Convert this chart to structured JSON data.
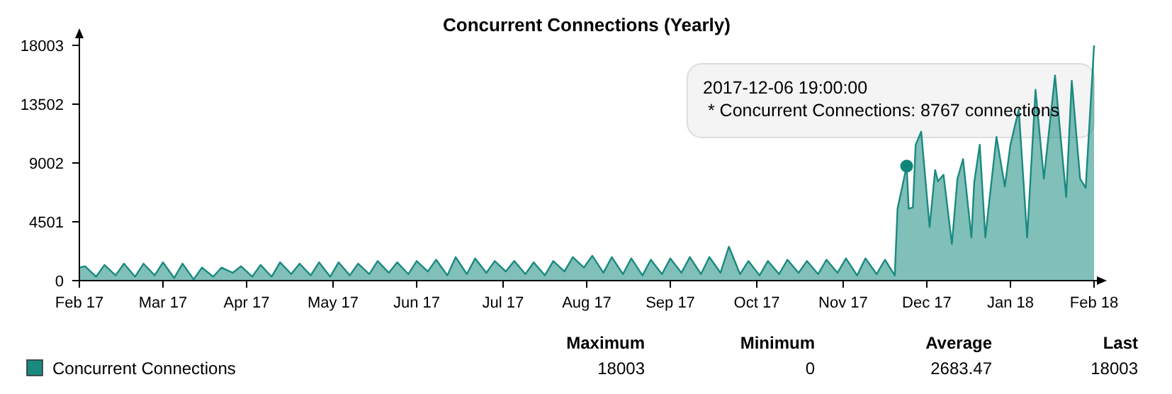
{
  "chart_data": {
    "type": "area",
    "title": "Concurrent Connections (Yearly)",
    "xlim": [
      "2017-02-13",
      "2018-02-12"
    ],
    "xticks": [
      {
        "value": "2017-02-13",
        "label": "Feb 17"
      },
      {
        "value": "2017-03-15",
        "label": "Mar 17"
      },
      {
        "value": "2017-04-14",
        "label": "Apr 17"
      },
      {
        "value": "2017-05-15",
        "label": "May 17"
      },
      {
        "value": "2017-06-14",
        "label": "Jun 17"
      },
      {
        "value": "2017-07-15",
        "label": "Jul 17"
      },
      {
        "value": "2017-08-14",
        "label": "Aug 17"
      },
      {
        "value": "2017-09-13",
        "label": "Sep 17"
      },
      {
        "value": "2017-10-14",
        "label": "Oct 17"
      },
      {
        "value": "2017-11-14",
        "label": "Nov 17"
      },
      {
        "value": "2017-12-14",
        "label": "Dec 17"
      },
      {
        "value": "2018-01-13",
        "label": "Jan 18"
      },
      {
        "value": "2018-02-12",
        "label": "Feb 18"
      }
    ],
    "ylim": [
      0,
      18003
    ],
    "yticks": [
      0,
      4501,
      9002,
      13502,
      18003
    ],
    "legend": "bottom left",
    "x": [
      "2017-02-13",
      "2017-02-15",
      "2017-02-19",
      "2017-02-22",
      "2017-02-26",
      "2017-03-01",
      "2017-03-05",
      "2017-03-08",
      "2017-03-12",
      "2017-03-15",
      "2017-03-19",
      "2017-03-22",
      "2017-03-26",
      "2017-03-29",
      "2017-04-02",
      "2017-04-05",
      "2017-04-09",
      "2017-04-12",
      "2017-04-16",
      "2017-04-19",
      "2017-04-23",
      "2017-04-26",
      "2017-04-30",
      "2017-05-03",
      "2017-05-07",
      "2017-05-10",
      "2017-05-14",
      "2017-05-17",
      "2017-05-21",
      "2017-05-24",
      "2017-05-28",
      "2017-05-31",
      "2017-06-04",
      "2017-06-07",
      "2017-06-11",
      "2017-06-14",
      "2017-06-18",
      "2017-06-21",
      "2017-06-25",
      "2017-06-28",
      "2017-07-02",
      "2017-07-05",
      "2017-07-09",
      "2017-07-12",
      "2017-07-16",
      "2017-07-19",
      "2017-07-23",
      "2017-07-26",
      "2017-07-30",
      "2017-08-02",
      "2017-08-06",
      "2017-08-09",
      "2017-08-13",
      "2017-08-16",
      "2017-08-20",
      "2017-08-23",
      "2017-08-27",
      "2017-08-30",
      "2017-09-03",
      "2017-09-06",
      "2017-09-10",
      "2017-09-13",
      "2017-09-17",
      "2017-09-20",
      "2017-09-24",
      "2017-09-27",
      "2017-10-01",
      "2017-10-04",
      "2017-10-08",
      "2017-10-11",
      "2017-10-15",
      "2017-10-18",
      "2017-10-22",
      "2017-10-25",
      "2017-10-29",
      "2017-11-01",
      "2017-11-05",
      "2017-11-08",
      "2017-11-12",
      "2017-11-15",
      "2017-11-19",
      "2017-11-22",
      "2017-11-26",
      "2017-11-29",
      "2017-12-02T12:00",
      "2017-12-03T12:00",
      "2017-12-06T19:00",
      "2017-12-07T12:00",
      "2017-12-09",
      "2017-12-10",
      "2017-12-12",
      "2017-12-15",
      "2017-12-17",
      "2017-12-18",
      "2017-12-20",
      "2017-12-23",
      "2017-12-25",
      "2017-12-27",
      "2017-12-30",
      "2017-12-31",
      "2018-01-02",
      "2018-01-04",
      "2018-01-06",
      "2018-01-08",
      "2018-01-11",
      "2018-01-13",
      "2018-01-16",
      "2018-01-19",
      "2018-01-22",
      "2018-01-25",
      "2018-01-29",
      "2018-01-31",
      "2018-02-02",
      "2018-02-04",
      "2018-02-07",
      "2018-02-09",
      "2018-02-12"
    ],
    "series": [
      {
        "name": "Concurrent Connections",
        "color": "#1a8a80",
        "values": [
          1000,
          1100,
          300,
          1200,
          400,
          1300,
          300,
          1300,
          400,
          1400,
          200,
          1300,
          100,
          1000,
          300,
          1000,
          600,
          1100,
          300,
          1200,
          300,
          1400,
          500,
          1300,
          400,
          1400,
          300,
          1400,
          400,
          1300,
          500,
          1500,
          600,
          1400,
          500,
          1500,
          700,
          1600,
          400,
          1800,
          500,
          1700,
          600,
          1500,
          700,
          1500,
          500,
          1400,
          400,
          1500,
          700,
          1800,
          1000,
          1900,
          600,
          1800,
          500,
          1700,
          400,
          1600,
          500,
          1700,
          600,
          1800,
          500,
          1800,
          600,
          2600,
          500,
          1500,
          400,
          1500,
          500,
          1600,
          600,
          1500,
          500,
          1600,
          600,
          1700,
          400,
          1700,
          500,
          1600,
          400,
          5500,
          8767,
          5500,
          5600,
          10400,
          11400,
          4100,
          8460,
          7600,
          8100,
          2800,
          7800,
          9300,
          3300,
          7500,
          10400,
          3300,
          7200,
          11000,
          7200,
          10400,
          13100,
          3300,
          14600,
          7800,
          15700,
          11000,
          6400,
          15300,
          7800,
          7100,
          18003
        ]
      }
    ],
    "annotations": [
      {
        "text": "2017-12-06 19:00:00\n * Concurrent Connections: 8767 connections",
        "x": "2017-12-06T19:00",
        "y": 8767
      },
      "Maximum",
      "Minimum",
      "Average",
      "Last",
      "18003",
      "0",
      "2683.47",
      "18003"
    ]
  }
}
